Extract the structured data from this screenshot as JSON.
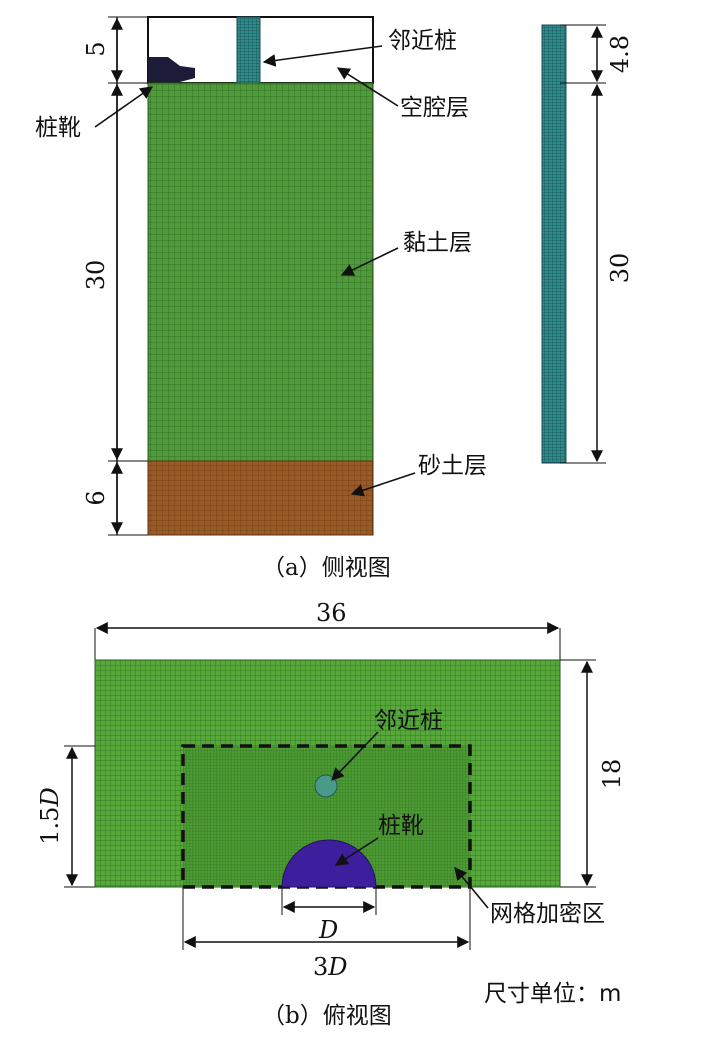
{
  "side_view": {
    "caption": "（a）侧视图",
    "labels": {
      "adjacent_pile": "邻近桩",
      "cavity_layer": "空腔层",
      "pile_shoe": "桩靴",
      "clay_layer": "黏土层",
      "sand_layer": "砂土层"
    },
    "dims": {
      "cavity": "5",
      "clay": "30",
      "sand": "6"
    },
    "pile_dims": {
      "top": "4.8",
      "body": "30"
    },
    "colors": {
      "clay": "#4f9a3a",
      "clay_grid": "#2f6b22",
      "sand": "#9a5a26",
      "sand_grid": "#6b3a16",
      "pile": "#2f8a8a",
      "pile_grid": "#174a52",
      "shoe": "#1c1c3a"
    }
  },
  "top_view": {
    "caption": "（b）俯视图",
    "labels": {
      "adjacent_pile": "邻近桩",
      "pile_shoe": "桩靴",
      "refined_zone": "网格加密区",
      "units": "尺寸单位：m"
    },
    "dims": {
      "width": "36",
      "height": "18",
      "offset": "1.5",
      "pile_d": "D",
      "zone_width": "3",
      "zone_width_unit": "D"
    },
    "colors": {
      "mesh": "#57a83a",
      "mesh_grid": "#2a6a1c",
      "shoe": "#3d1f9e",
      "adjacent": "#4a9a8a"
    }
  }
}
